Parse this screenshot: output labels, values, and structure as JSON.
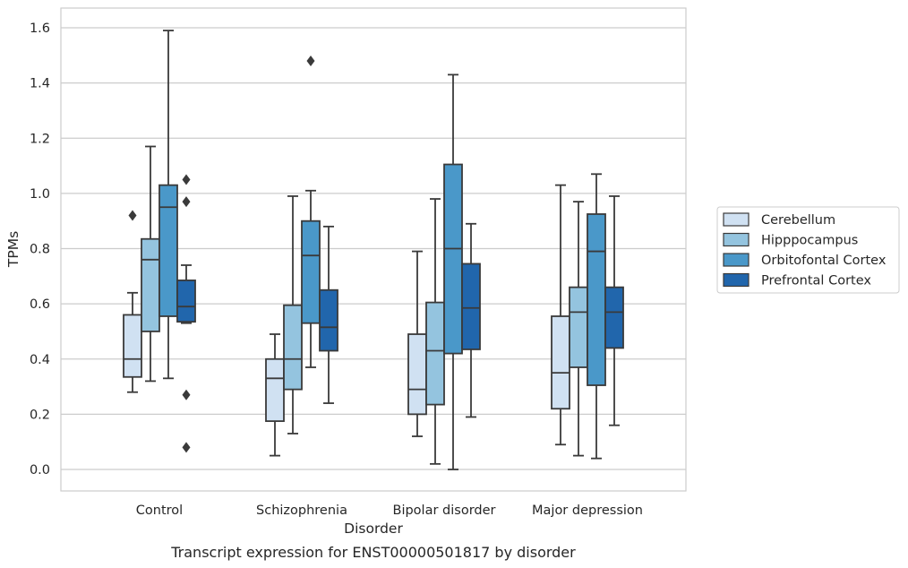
{
  "chart_data": {
    "type": "box",
    "caption": "Transcript expression for ENST00000501817 by disorder",
    "xlabel": "Disorder",
    "ylabel": "TPMs",
    "categories": [
      "Control",
      "Schizophrenia",
      "Bipolar disorder",
      "Major depression"
    ],
    "ylim": [
      -0.08,
      1.67
    ],
    "yticks": [
      "0.0",
      "0.2",
      "0.4",
      "0.6",
      "0.8",
      "1.0",
      "1.2",
      "1.4",
      "1.6"
    ],
    "grid": true,
    "legend": "right",
    "series": [
      {
        "name": "Cerebellum",
        "color": "#d0e1f2",
        "boxes": [
          {
            "whislo": 0.28,
            "q1": 0.335,
            "med": 0.4,
            "q3": 0.56,
            "whishi": 0.64,
            "fliers": [
              0.92
            ]
          },
          {
            "whislo": 0.05,
            "q1": 0.175,
            "med": 0.33,
            "q3": 0.4,
            "whishi": 0.49,
            "fliers": []
          },
          {
            "whislo": 0.12,
            "q1": 0.2,
            "med": 0.29,
            "q3": 0.49,
            "whishi": 0.79,
            "fliers": []
          },
          {
            "whislo": 0.09,
            "q1": 0.22,
            "med": 0.35,
            "q3": 0.555,
            "whishi": 1.03,
            "fliers": []
          }
        ]
      },
      {
        "name": "Hipppocampus",
        "color": "#94c4df",
        "boxes": [
          {
            "whislo": 0.32,
            "q1": 0.5,
            "med": 0.76,
            "q3": 0.835,
            "whishi": 1.17,
            "fliers": []
          },
          {
            "whislo": 0.13,
            "q1": 0.29,
            "med": 0.4,
            "q3": 0.595,
            "whishi": 0.99,
            "fliers": []
          },
          {
            "whislo": 0.02,
            "q1": 0.235,
            "med": 0.43,
            "q3": 0.605,
            "whishi": 0.98,
            "fliers": []
          },
          {
            "whislo": 0.05,
            "q1": 0.37,
            "med": 0.57,
            "q3": 0.66,
            "whishi": 0.97,
            "fliers": []
          }
        ]
      },
      {
        "name": "Orbitofontal Cortex",
        "color": "#4a98c9",
        "boxes": [
          {
            "whislo": 0.33,
            "q1": 0.555,
            "med": 0.95,
            "q3": 1.03,
            "whishi": 1.59,
            "fliers": []
          },
          {
            "whislo": 0.37,
            "q1": 0.53,
            "med": 0.775,
            "q3": 0.9,
            "whishi": 1.01,
            "fliers": [
              1.48
            ]
          },
          {
            "whislo": 0.0,
            "q1": 0.42,
            "med": 0.8,
            "q3": 1.105,
            "whishi": 1.43,
            "fliers": []
          },
          {
            "whislo": 0.04,
            "q1": 0.305,
            "med": 0.79,
            "q3": 0.925,
            "whishi": 1.07,
            "fliers": []
          }
        ]
      },
      {
        "name": "Prefrontal Cortex",
        "color": "#2166ac",
        "boxes": [
          {
            "whislo": 0.53,
            "q1": 0.535,
            "med": 0.59,
            "q3": 0.685,
            "whishi": 0.74,
            "fliers": [
              1.05,
              0.97,
              0.27,
              0.08
            ]
          },
          {
            "whislo": 0.24,
            "q1": 0.43,
            "med": 0.515,
            "q3": 0.65,
            "whishi": 0.88,
            "fliers": []
          },
          {
            "whislo": 0.19,
            "q1": 0.435,
            "med": 0.585,
            "q3": 0.745,
            "whishi": 0.89,
            "fliers": []
          },
          {
            "whislo": 0.16,
            "q1": 0.44,
            "med": 0.57,
            "q3": 0.66,
            "whishi": 0.99,
            "fliers": []
          }
        ]
      }
    ]
  }
}
